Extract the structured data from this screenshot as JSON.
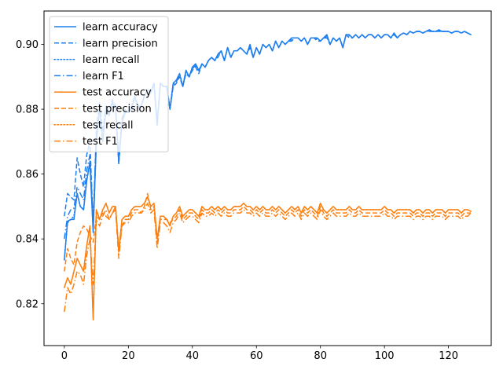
{
  "chart_data": {
    "type": "line",
    "title": "",
    "xlabel": "",
    "ylabel": "",
    "xlim": [
      -6.35,
      133.35
    ],
    "ylim": [
      0.8071,
      0.9103
    ],
    "xticks": [
      0,
      20,
      40,
      60,
      80,
      100,
      120
    ],
    "yticks": [
      0.82,
      0.84,
      0.86,
      0.88,
      0.9
    ],
    "ytick_labels": [
      "0.82",
      "0.84",
      "0.86",
      "0.88",
      "0.90"
    ],
    "legend_position": "upper-left",
    "colors": {
      "learn": "#1f7fef",
      "test": "#ff7f0e"
    },
    "series": [
      {
        "name": "learn accuracy",
        "color": "#1f7fef",
        "dash": "solid",
        "values": [
          0.8335,
          0.8455,
          0.846,
          0.846,
          0.854,
          0.85,
          0.849,
          0.858,
          0.864,
          0.842,
          0.87,
          0.88,
          0.87,
          0.88,
          0.878,
          0.882,
          0.88,
          0.864,
          0.876,
          0.879,
          0.879,
          0.88,
          0.884,
          0.88,
          0.881,
          0.884,
          0.886,
          0.885,
          0.888,
          0.875,
          0.888,
          0.887,
          0.887,
          0.88,
          0.888,
          0.889,
          0.891,
          0.887,
          0.892,
          0.89,
          0.893,
          0.894,
          0.892,
          0.894,
          0.893,
          0.895,
          0.896,
          0.895,
          0.897,
          0.898,
          0.895,
          0.899,
          0.896,
          0.898,
          0.898,
          0.899,
          0.898,
          0.897,
          0.9,
          0.896,
          0.899,
          0.897,
          0.9,
          0.899,
          0.9,
          0.898,
          0.901,
          0.899,
          0.901,
          0.9,
          0.901,
          0.902,
          0.902,
          0.902,
          0.901,
          0.902,
          0.9,
          0.902,
          0.902,
          0.902,
          0.901,
          0.902,
          0.903,
          0.9,
          0.902,
          0.901,
          0.902,
          0.899,
          0.903,
          0.903,
          0.902,
          0.903,
          0.902,
          0.903,
          0.902,
          0.903,
          0.903,
          0.902,
          0.903,
          0.902,
          0.903,
          0.903,
          0.902,
          0.9035,
          0.902,
          0.903,
          0.9035,
          0.903,
          0.904,
          0.9035,
          0.904,
          0.904,
          0.9035,
          0.904,
          0.9045,
          0.904,
          0.904,
          0.9045,
          0.904,
          0.904,
          0.904,
          0.9035,
          0.904,
          0.904,
          0.9035,
          0.904,
          0.9035,
          0.903
        ]
      },
      {
        "name": "learn precision",
        "color": "#1f7fef",
        "dash": "dashed",
        "values": [
          0.847,
          0.854,
          0.853,
          0.852,
          0.865,
          0.86,
          0.856,
          0.866,
          0.87,
          0.844,
          0.874,
          0.882,
          0.873,
          0.881,
          0.879,
          0.883,
          0.881,
          0.863,
          0.877,
          0.88,
          0.879,
          0.881,
          0.884,
          0.881,
          0.881,
          0.884,
          0.886,
          0.885,
          0.888,
          0.876,
          0.888,
          0.887,
          0.887,
          0.88,
          0.887,
          0.888,
          0.89,
          0.887,
          0.891,
          0.89,
          0.892,
          0.893,
          0.891,
          0.894,
          0.893,
          0.895,
          0.896,
          0.895,
          0.896,
          0.898,
          0.895,
          0.899,
          0.896,
          0.898,
          0.898,
          0.899,
          0.898,
          0.897,
          0.899,
          0.896,
          0.899,
          0.897,
          0.9,
          0.899,
          0.9,
          0.898,
          0.901,
          0.899,
          0.901,
          0.9,
          0.901,
          0.901,
          0.902,
          0.902,
          0.901,
          0.902,
          0.9,
          0.902,
          0.902,
          0.901,
          0.901,
          0.902,
          0.902,
          0.9,
          0.902,
          0.901,
          0.902,
          0.899,
          0.903,
          0.902,
          0.902,
          0.903,
          0.902,
          0.903,
          0.902,
          0.903,
          0.903,
          0.902,
          0.903,
          0.902,
          0.903,
          0.903,
          0.902,
          0.903,
          0.902,
          0.903,
          0.9035,
          0.903,
          0.904,
          0.9035,
          0.904,
          0.904,
          0.9035,
          0.904,
          0.904,
          0.904,
          0.904,
          0.904,
          0.904,
          0.904,
          0.904,
          0.9035,
          0.904,
          0.904,
          0.9035,
          0.904,
          0.9035,
          0.903
        ]
      },
      {
        "name": "learn recall",
        "color": "#1f7fef",
        "dash": "dotted",
        "values": [
          0.8335,
          0.845,
          0.846,
          0.847,
          0.854,
          0.85,
          0.849,
          0.858,
          0.863,
          0.843,
          0.87,
          0.88,
          0.87,
          0.88,
          0.878,
          0.882,
          0.88,
          0.864,
          0.876,
          0.879,
          0.879,
          0.88,
          0.884,
          0.88,
          0.881,
          0.884,
          0.886,
          0.885,
          0.888,
          0.875,
          0.888,
          0.887,
          0.887,
          0.88,
          0.888,
          0.889,
          0.891,
          0.887,
          0.892,
          0.89,
          0.893,
          0.894,
          0.892,
          0.894,
          0.893,
          0.895,
          0.896,
          0.895,
          0.897,
          0.898,
          0.895,
          0.899,
          0.896,
          0.898,
          0.898,
          0.899,
          0.898,
          0.897,
          0.9,
          0.896,
          0.899,
          0.897,
          0.9,
          0.899,
          0.9,
          0.898,
          0.901,
          0.899,
          0.901,
          0.9,
          0.901,
          0.902,
          0.902,
          0.902,
          0.901,
          0.902,
          0.9,
          0.902,
          0.902,
          0.902,
          0.901,
          0.902,
          0.903,
          0.9,
          0.902,
          0.901,
          0.902,
          0.899,
          0.903,
          0.903,
          0.902,
          0.903,
          0.902,
          0.903,
          0.902,
          0.903,
          0.903,
          0.902,
          0.903,
          0.902,
          0.903,
          0.903,
          0.902,
          0.9035,
          0.902,
          0.903,
          0.9035,
          0.903,
          0.904,
          0.9035,
          0.904,
          0.904,
          0.9035,
          0.904,
          0.9045,
          0.904,
          0.904,
          0.9045,
          0.904,
          0.904,
          0.904,
          0.9035,
          0.904,
          0.904,
          0.9035,
          0.904,
          0.9035,
          0.903
        ]
      },
      {
        "name": "learn F1",
        "color": "#1f7fef",
        "dash": "dashdot",
        "values": [
          0.84,
          0.847,
          0.849,
          0.8495,
          0.856,
          0.854,
          0.852,
          0.861,
          0.866,
          0.845,
          0.872,
          0.881,
          0.8715,
          0.8805,
          0.8785,
          0.8825,
          0.8805,
          0.8635,
          0.8765,
          0.8795,
          0.879,
          0.8805,
          0.884,
          0.8805,
          0.881,
          0.884,
          0.886,
          0.885,
          0.888,
          0.8755,
          0.888,
          0.887,
          0.887,
          0.88,
          0.8875,
          0.8885,
          0.8905,
          0.887,
          0.8915,
          0.89,
          0.8925,
          0.8935,
          0.8915,
          0.894,
          0.893,
          0.895,
          0.896,
          0.895,
          0.8965,
          0.898,
          0.895,
          0.899,
          0.896,
          0.898,
          0.898,
          0.899,
          0.898,
          0.897,
          0.8995,
          0.896,
          0.899,
          0.897,
          0.9,
          0.899,
          0.9,
          0.898,
          0.901,
          0.899,
          0.901,
          0.9,
          0.901,
          0.9015,
          0.902,
          0.902,
          0.901,
          0.902,
          0.9,
          0.902,
          0.902,
          0.9015,
          0.901,
          0.902,
          0.9025,
          0.9,
          0.902,
          0.901,
          0.902,
          0.899,
          0.903,
          0.9025,
          0.902,
          0.903,
          0.902,
          0.903,
          0.902,
          0.903,
          0.903,
          0.902,
          0.903,
          0.902,
          0.903,
          0.903,
          0.902,
          0.9032,
          0.902,
          0.903,
          0.9035,
          0.903,
          0.904,
          0.9035,
          0.904,
          0.904,
          0.9035,
          0.904,
          0.9042,
          0.904,
          0.904,
          0.9042,
          0.904,
          0.904,
          0.904,
          0.9035,
          0.904,
          0.904,
          0.9035,
          0.904,
          0.9035,
          0.903
        ]
      },
      {
        "name": "test accuracy",
        "color": "#ff7f0e",
        "dash": "solid",
        "values": [
          0.825,
          0.828,
          0.826,
          0.83,
          0.834,
          0.832,
          0.83,
          0.838,
          0.844,
          0.815,
          0.849,
          0.846,
          0.849,
          0.851,
          0.848,
          0.85,
          0.85,
          0.836,
          0.846,
          0.847,
          0.847,
          0.849,
          0.85,
          0.85,
          0.85,
          0.851,
          0.853,
          0.85,
          0.851,
          0.84,
          0.847,
          0.847,
          0.846,
          0.844,
          0.847,
          0.848,
          0.85,
          0.847,
          0.848,
          0.849,
          0.849,
          0.848,
          0.847,
          0.85,
          0.849,
          0.849,
          0.85,
          0.849,
          0.85,
          0.849,
          0.85,
          0.849,
          0.849,
          0.85,
          0.85,
          0.85,
          0.851,
          0.85,
          0.85,
          0.849,
          0.85,
          0.849,
          0.85,
          0.849,
          0.849,
          0.85,
          0.849,
          0.85,
          0.849,
          0.848,
          0.849,
          0.85,
          0.849,
          0.85,
          0.848,
          0.85,
          0.849,
          0.85,
          0.849,
          0.848,
          0.851,
          0.849,
          0.848,
          0.849,
          0.85,
          0.849,
          0.849,
          0.849,
          0.849,
          0.85,
          0.849,
          0.849,
          0.85,
          0.849,
          0.849,
          0.849,
          0.849,
          0.849,
          0.849,
          0.849,
          0.85,
          0.849,
          0.849,
          0.848,
          0.849,
          0.849,
          0.849,
          0.849,
          0.849,
          0.848,
          0.849,
          0.849,
          0.848,
          0.849,
          0.849,
          0.848,
          0.849,
          0.849,
          0.849,
          0.848,
          0.849,
          0.849,
          0.849,
          0.849,
          0.848,
          0.849,
          0.849,
          0.8485
        ]
      },
      {
        "name": "test precision",
        "color": "#ff7f0e",
        "dash": "dashed",
        "values": [
          0.83,
          0.837,
          0.834,
          0.832,
          0.839,
          0.842,
          0.844,
          0.843,
          0.841,
          0.839,
          0.847,
          0.846,
          0.848,
          0.847,
          0.846,
          0.848,
          0.85,
          0.837,
          0.844,
          0.846,
          0.846,
          0.848,
          0.849,
          0.849,
          0.848,
          0.85,
          0.854,
          0.849,
          0.85,
          0.839,
          0.846,
          0.846,
          0.846,
          0.845,
          0.846,
          0.847,
          0.849,
          0.846,
          0.847,
          0.848,
          0.848,
          0.847,
          0.846,
          0.849,
          0.848,
          0.848,
          0.849,
          0.848,
          0.849,
          0.848,
          0.849,
          0.848,
          0.848,
          0.849,
          0.849,
          0.849,
          0.85,
          0.849,
          0.849,
          0.848,
          0.849,
          0.848,
          0.849,
          0.848,
          0.848,
          0.849,
          0.848,
          0.849,
          0.848,
          0.847,
          0.848,
          0.849,
          0.848,
          0.849,
          0.847,
          0.849,
          0.848,
          0.849,
          0.848,
          0.847,
          0.85,
          0.848,
          0.847,
          0.848,
          0.849,
          0.848,
          0.848,
          0.848,
          0.848,
          0.849,
          0.848,
          0.848,
          0.849,
          0.848,
          0.848,
          0.848,
          0.848,
          0.848,
          0.848,
          0.848,
          0.849,
          0.848,
          0.848,
          0.847,
          0.848,
          0.848,
          0.848,
          0.848,
          0.848,
          0.847,
          0.848,
          0.848,
          0.847,
          0.848,
          0.848,
          0.847,
          0.848,
          0.848,
          0.848,
          0.847,
          0.848,
          0.848,
          0.848,
          0.848,
          0.847,
          0.848,
          0.848,
          0.848
        ]
      },
      {
        "name": "test recall",
        "color": "#ff7f0e",
        "dash": "dotted",
        "values": [
          0.825,
          0.828,
          0.826,
          0.83,
          0.834,
          0.832,
          0.83,
          0.838,
          0.844,
          0.816,
          0.849,
          0.846,
          0.849,
          0.851,
          0.848,
          0.85,
          0.85,
          0.836,
          0.846,
          0.847,
          0.847,
          0.849,
          0.85,
          0.85,
          0.85,
          0.851,
          0.853,
          0.85,
          0.851,
          0.84,
          0.847,
          0.847,
          0.846,
          0.844,
          0.847,
          0.848,
          0.85,
          0.847,
          0.848,
          0.849,
          0.849,
          0.848,
          0.847,
          0.85,
          0.849,
          0.849,
          0.85,
          0.849,
          0.85,
          0.849,
          0.85,
          0.849,
          0.849,
          0.85,
          0.85,
          0.85,
          0.851,
          0.85,
          0.85,
          0.849,
          0.85,
          0.849,
          0.85,
          0.849,
          0.849,
          0.85,
          0.849,
          0.85,
          0.849,
          0.848,
          0.849,
          0.85,
          0.849,
          0.85,
          0.848,
          0.85,
          0.849,
          0.85,
          0.849,
          0.848,
          0.851,
          0.849,
          0.848,
          0.849,
          0.85,
          0.849,
          0.849,
          0.849,
          0.849,
          0.85,
          0.849,
          0.849,
          0.85,
          0.849,
          0.849,
          0.849,
          0.849,
          0.849,
          0.849,
          0.849,
          0.85,
          0.849,
          0.849,
          0.848,
          0.849,
          0.849,
          0.849,
          0.849,
          0.849,
          0.848,
          0.849,
          0.849,
          0.848,
          0.849,
          0.849,
          0.848,
          0.849,
          0.849,
          0.849,
          0.848,
          0.849,
          0.849,
          0.849,
          0.849,
          0.848,
          0.849,
          0.849,
          0.8485
        ]
      },
      {
        "name": "test F1",
        "color": "#ff7f0e",
        "dash": "dashdot",
        "values": [
          0.8175,
          0.825,
          0.823,
          0.826,
          0.83,
          0.829,
          0.826,
          0.835,
          0.84,
          0.826,
          0.846,
          0.844,
          0.847,
          0.849,
          0.846,
          0.848,
          0.849,
          0.834,
          0.844,
          0.845,
          0.845,
          0.847,
          0.848,
          0.848,
          0.848,
          0.849,
          0.851,
          0.848,
          0.849,
          0.837,
          0.845,
          0.845,
          0.844,
          0.842,
          0.845,
          0.846,
          0.848,
          0.845,
          0.846,
          0.847,
          0.847,
          0.846,
          0.845,
          0.848,
          0.847,
          0.847,
          0.848,
          0.847,
          0.848,
          0.847,
          0.848,
          0.847,
          0.847,
          0.848,
          0.848,
          0.848,
          0.849,
          0.848,
          0.848,
          0.847,
          0.848,
          0.847,
          0.848,
          0.847,
          0.847,
          0.848,
          0.847,
          0.848,
          0.847,
          0.846,
          0.847,
          0.848,
          0.847,
          0.848,
          0.846,
          0.848,
          0.847,
          0.848,
          0.847,
          0.846,
          0.849,
          0.847,
          0.846,
          0.847,
          0.848,
          0.847,
          0.847,
          0.847,
          0.847,
          0.848,
          0.847,
          0.847,
          0.848,
          0.847,
          0.847,
          0.847,
          0.847,
          0.847,
          0.847,
          0.847,
          0.848,
          0.847,
          0.847,
          0.846,
          0.847,
          0.847,
          0.847,
          0.847,
          0.847,
          0.846,
          0.847,
          0.847,
          0.846,
          0.847,
          0.847,
          0.846,
          0.847,
          0.847,
          0.847,
          0.846,
          0.847,
          0.847,
          0.847,
          0.847,
          0.846,
          0.847,
          0.847,
          0.848
        ]
      }
    ]
  }
}
